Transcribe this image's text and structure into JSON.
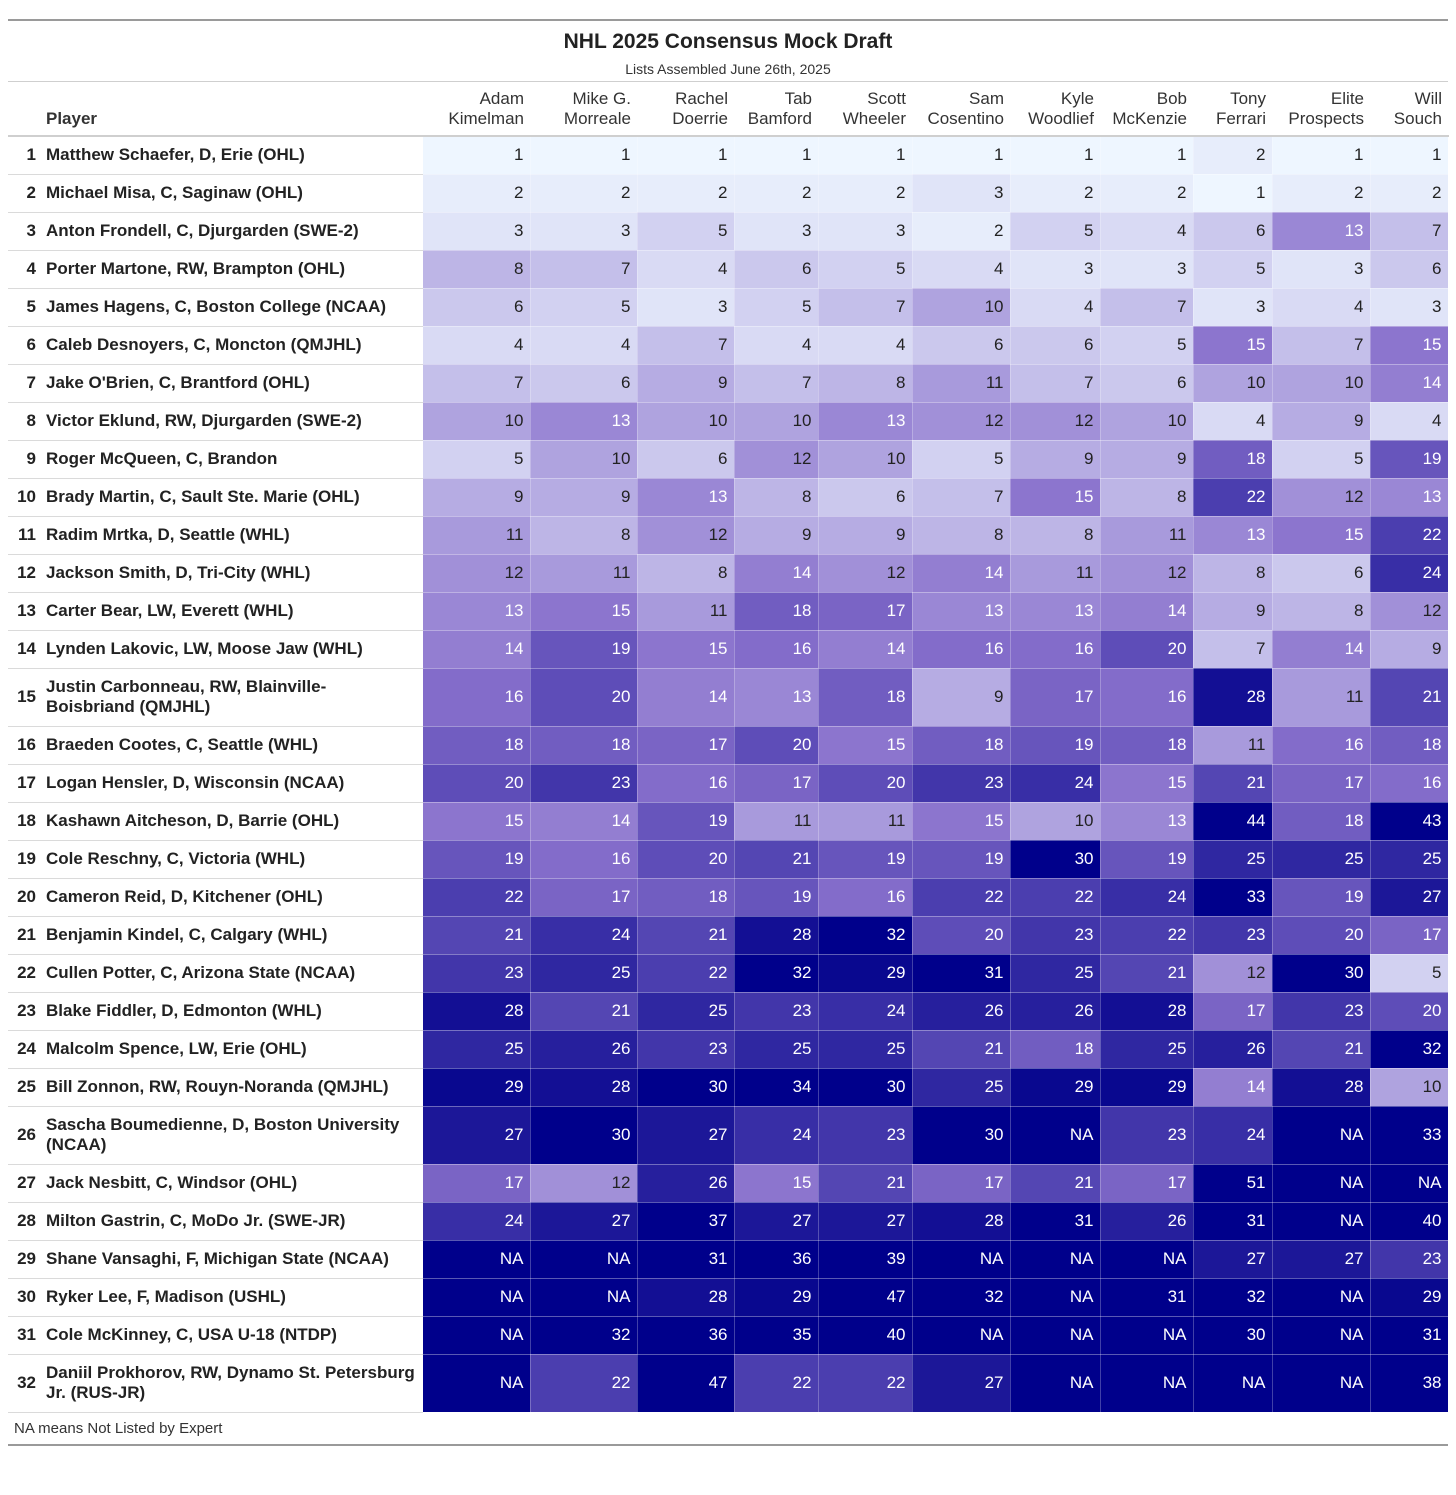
{
  "chart_data": {
    "type": "table",
    "title": "NHL 2025 Consensus Mock Draft",
    "subtitle": "Lists Assembled June 26th, 2025",
    "player_header": "Player",
    "experts": [
      [
        "Adam",
        "Kimelman"
      ],
      [
        "Mike G.",
        "Morreale"
      ],
      [
        "Rachel",
        "Doerrie"
      ],
      [
        "Tab",
        "Bamford"
      ],
      [
        "Scott",
        "Wheeler"
      ],
      [
        "Sam",
        "Cosentino"
      ],
      [
        "Kyle",
        "Woodlief"
      ],
      [
        "Bob",
        "McKenzie"
      ],
      [
        "Tony",
        "Ferrari"
      ],
      [
        "Elite",
        "Prospects"
      ],
      [
        "Will",
        "Souch"
      ]
    ],
    "rows": [
      {
        "rank": "1",
        "player": "Matthew Schaefer, D, Erie (OHL)",
        "values": [
          1,
          1,
          1,
          1,
          1,
          1,
          1,
          1,
          2,
          1,
          1
        ]
      },
      {
        "rank": "2",
        "player": "Michael Misa, C, Saginaw (OHL)",
        "values": [
          2,
          2,
          2,
          2,
          2,
          3,
          2,
          2,
          1,
          2,
          2
        ]
      },
      {
        "rank": "3",
        "player": "Anton Frondell, C, Djurgarden (SWE-2)",
        "values": [
          3,
          3,
          5,
          3,
          3,
          2,
          5,
          4,
          6,
          13,
          7
        ]
      },
      {
        "rank": "4",
        "player": "Porter Martone, RW, Brampton (OHL)",
        "values": [
          8,
          7,
          4,
          6,
          5,
          4,
          3,
          3,
          5,
          3,
          6
        ]
      },
      {
        "rank": "5",
        "player": "James Hagens, C, Boston College (NCAA)",
        "values": [
          6,
          5,
          3,
          5,
          7,
          10,
          4,
          7,
          3,
          4,
          3
        ]
      },
      {
        "rank": "6",
        "player": "Caleb Desnoyers, C, Moncton (QMJHL)",
        "values": [
          4,
          4,
          7,
          4,
          4,
          6,
          6,
          5,
          15,
          7,
          15
        ]
      },
      {
        "rank": "7",
        "player": "Jake O'Brien, C, Brantford (OHL)",
        "values": [
          7,
          6,
          9,
          7,
          8,
          11,
          7,
          6,
          10,
          10,
          14
        ]
      },
      {
        "rank": "8",
        "player": "Victor Eklund, RW, Djurgarden (SWE-2)",
        "values": [
          10,
          13,
          10,
          10,
          13,
          12,
          12,
          10,
          4,
          9,
          4
        ]
      },
      {
        "rank": "9",
        "player": "Roger McQueen, C, Brandon",
        "values": [
          5,
          10,
          6,
          12,
          10,
          5,
          9,
          9,
          18,
          5,
          19
        ]
      },
      {
        "rank": "10",
        "player": "Brady Martin, C, Sault Ste. Marie (OHL)",
        "values": [
          9,
          9,
          13,
          8,
          6,
          7,
          15,
          8,
          22,
          12,
          13
        ]
      },
      {
        "rank": "11",
        "player": "Radim Mrtka, D, Seattle (WHL)",
        "values": [
          11,
          8,
          12,
          9,
          9,
          8,
          8,
          11,
          13,
          15,
          22
        ]
      },
      {
        "rank": "12",
        "player": "Jackson Smith, D, Tri-City (WHL)",
        "values": [
          12,
          11,
          8,
          14,
          12,
          14,
          11,
          12,
          8,
          6,
          24
        ]
      },
      {
        "rank": "13",
        "player": "Carter Bear, LW, Everett (WHL)",
        "values": [
          13,
          15,
          11,
          18,
          17,
          13,
          13,
          14,
          9,
          8,
          12
        ]
      },
      {
        "rank": "14",
        "player": "Lynden Lakovic, LW, Moose Jaw (WHL)",
        "values": [
          14,
          19,
          15,
          16,
          14,
          16,
          16,
          20,
          7,
          14,
          9
        ]
      },
      {
        "rank": "15",
        "player": "Justin Carbonneau, RW, Blainville-Boisbriand (QMJHL)",
        "values": [
          16,
          20,
          14,
          13,
          18,
          9,
          17,
          16,
          28,
          11,
          21
        ]
      },
      {
        "rank": "16",
        "player": "Braeden Cootes, C, Seattle (WHL)",
        "values": [
          18,
          18,
          17,
          20,
          15,
          18,
          19,
          18,
          11,
          16,
          18
        ]
      },
      {
        "rank": "17",
        "player": "Logan Hensler, D, Wisconsin (NCAA)",
        "values": [
          20,
          23,
          16,
          17,
          20,
          23,
          24,
          15,
          21,
          17,
          16
        ]
      },
      {
        "rank": "18",
        "player": "Kashawn Aitcheson, D, Barrie (OHL)",
        "values": [
          15,
          14,
          19,
          11,
          11,
          15,
          10,
          13,
          44,
          18,
          43
        ]
      },
      {
        "rank": "19",
        "player": "Cole Reschny, C, Victoria (WHL)",
        "values": [
          19,
          16,
          20,
          21,
          19,
          19,
          30,
          19,
          25,
          25,
          25
        ]
      },
      {
        "rank": "20",
        "player": "Cameron Reid, D, Kitchener (OHL)",
        "values": [
          22,
          17,
          18,
          19,
          16,
          22,
          22,
          24,
          33,
          19,
          27
        ]
      },
      {
        "rank": "21",
        "player": "Benjamin Kindel, C, Calgary (WHL)",
        "values": [
          21,
          24,
          21,
          28,
          32,
          20,
          23,
          22,
          23,
          20,
          17
        ]
      },
      {
        "rank": "22",
        "player": "Cullen Potter, C, Arizona State (NCAA)",
        "values": [
          23,
          25,
          22,
          32,
          29,
          31,
          25,
          21,
          12,
          30,
          5
        ]
      },
      {
        "rank": "23",
        "player": "Blake Fiddler, D, Edmonton (WHL)",
        "values": [
          28,
          21,
          25,
          23,
          24,
          26,
          26,
          28,
          17,
          23,
          20
        ]
      },
      {
        "rank": "24",
        "player": "Malcolm Spence, LW, Erie (OHL)",
        "values": [
          25,
          26,
          23,
          25,
          25,
          21,
          18,
          25,
          26,
          21,
          32
        ]
      },
      {
        "rank": "25",
        "player": "Bill Zonnon, RW, Rouyn-Noranda (QMJHL)",
        "values": [
          29,
          28,
          30,
          34,
          30,
          25,
          29,
          29,
          14,
          28,
          10
        ]
      },
      {
        "rank": "26",
        "player": "Sascha Boumedienne, D, Boston University (NCAA)",
        "values": [
          27,
          30,
          27,
          24,
          23,
          30,
          "NA",
          23,
          24,
          "NA",
          33
        ]
      },
      {
        "rank": "27",
        "player": "Jack Nesbitt, C, Windsor (OHL)",
        "values": [
          17,
          12,
          26,
          15,
          21,
          17,
          21,
          17,
          51,
          "NA",
          "NA"
        ]
      },
      {
        "rank": "28",
        "player": "Milton Gastrin, C, MoDo Jr. (SWE-JR)",
        "values": [
          24,
          27,
          37,
          27,
          27,
          28,
          31,
          26,
          31,
          "NA",
          40
        ]
      },
      {
        "rank": "29",
        "player": "Shane Vansaghi, F, Michigan State (NCAA)",
        "values": [
          "NA",
          "NA",
          31,
          36,
          39,
          "NA",
          "NA",
          "NA",
          27,
          27,
          23
        ]
      },
      {
        "rank": "30",
        "player": "Ryker Lee, F, Madison (USHL)",
        "values": [
          "NA",
          "NA",
          28,
          29,
          47,
          32,
          "NA",
          31,
          32,
          "NA",
          29
        ]
      },
      {
        "rank": "31",
        "player": "Cole McKinney, C, USA U-18 (NTDP)",
        "values": [
          "NA",
          32,
          36,
          35,
          40,
          "NA",
          "NA",
          "NA",
          30,
          "NA",
          31
        ]
      },
      {
        "rank": "32",
        "player": "Daniil Prokhorov, RW, Dynamo St. Petersburg Jr. (RUS-JR)",
        "values": [
          "NA",
          22,
          47,
          22,
          22,
          27,
          "NA",
          "NA",
          "NA",
          "NA",
          38
        ]
      }
    ],
    "footnote": "NA means Not Listed by Expert",
    "color_scale": {
      "low": "#eef6ff",
      "mid": "#8870cc",
      "high": "#00008b",
      "na": "#00008b"
    }
  }
}
